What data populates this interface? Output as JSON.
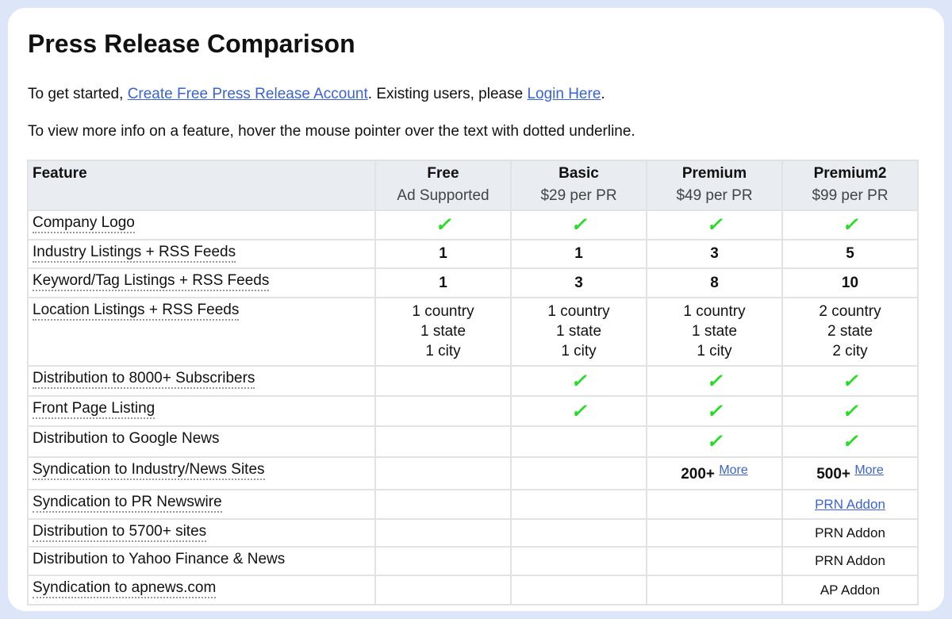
{
  "title": "Press Release Comparison",
  "intro": {
    "prefix": "To get started, ",
    "create_link": "Create Free Press Release Account",
    "middle": ". Existing users, please ",
    "login_link": "Login Here",
    "suffix": "."
  },
  "hint": "To view more info on a feature, hover the mouse pointer over the text with dotted underline.",
  "columns": [
    {
      "name": "Feature",
      "price": ""
    },
    {
      "name": "Free",
      "price": "Ad Supported"
    },
    {
      "name": "Basic",
      "price": "$29 per PR"
    },
    {
      "name": "Premium",
      "price": "$49 per PR"
    },
    {
      "name": "Premium2",
      "price": "$99 per PR"
    }
  ],
  "check_color": "#22dd22",
  "rows": [
    {
      "feature": "Company Logo",
      "dotted": true,
      "cells": [
        {
          "t": "check"
        },
        {
          "t": "check"
        },
        {
          "t": "check"
        },
        {
          "t": "check"
        }
      ]
    },
    {
      "feature": "Industry Listings + RSS Feeds",
      "dotted": true,
      "cells": [
        {
          "t": "bold",
          "v": "1"
        },
        {
          "t": "bold",
          "v": "1"
        },
        {
          "t": "bold",
          "v": "3"
        },
        {
          "t": "bold",
          "v": "5"
        }
      ]
    },
    {
      "feature": "Keyword/Tag Listings + RSS Feeds",
      "dotted": true,
      "cells": [
        {
          "t": "bold",
          "v": "1"
        },
        {
          "t": "bold",
          "v": "3"
        },
        {
          "t": "bold",
          "v": "8"
        },
        {
          "t": "bold",
          "v": "10"
        }
      ]
    },
    {
      "feature": "Location Listings + RSS Feeds",
      "dotted": true,
      "cells": [
        {
          "t": "lines",
          "v": [
            "1 country",
            "1 state",
            "1 city"
          ]
        },
        {
          "t": "lines",
          "v": [
            "1 country",
            "1 state",
            "1 city"
          ]
        },
        {
          "t": "lines",
          "v": [
            "1 country",
            "1 state",
            "1 city"
          ]
        },
        {
          "t": "lines",
          "v": [
            "2 country",
            "2 state",
            "2 city"
          ]
        }
      ]
    },
    {
      "feature": "Distribution to 8000+ Subscribers",
      "dotted": true,
      "cells": [
        {
          "t": "empty"
        },
        {
          "t": "check"
        },
        {
          "t": "check"
        },
        {
          "t": "check"
        }
      ]
    },
    {
      "feature": "Front Page Listing",
      "dotted": true,
      "cells": [
        {
          "t": "empty"
        },
        {
          "t": "check"
        },
        {
          "t": "check"
        },
        {
          "t": "check"
        }
      ]
    },
    {
      "feature": "Distribution to Google News",
      "dotted": false,
      "cells": [
        {
          "t": "empty"
        },
        {
          "t": "empty"
        },
        {
          "t": "check"
        },
        {
          "t": "check"
        }
      ]
    },
    {
      "feature": "Syndication to Industry/News Sites",
      "dotted": true,
      "cells": [
        {
          "t": "empty"
        },
        {
          "t": "empty"
        },
        {
          "t": "more",
          "v": "200+",
          "link": "More"
        },
        {
          "t": "more",
          "v": "500+",
          "link": "More"
        }
      ]
    },
    {
      "feature": "Syndication to PR Newswire",
      "dotted": true,
      "cells": [
        {
          "t": "empty"
        },
        {
          "t": "empty"
        },
        {
          "t": "empty"
        },
        {
          "t": "link",
          "v": "PRN Addon"
        }
      ]
    },
    {
      "feature": "Distribution to 5700+ sites",
      "dotted": true,
      "cells": [
        {
          "t": "empty"
        },
        {
          "t": "empty"
        },
        {
          "t": "empty"
        },
        {
          "t": "small",
          "v": "PRN Addon"
        }
      ]
    },
    {
      "feature": "Distribution to Yahoo Finance & News",
      "dotted": false,
      "cells": [
        {
          "t": "empty"
        },
        {
          "t": "empty"
        },
        {
          "t": "empty"
        },
        {
          "t": "small",
          "v": "PRN Addon"
        }
      ]
    },
    {
      "feature": "Syndication to apnews.com",
      "dotted": true,
      "cells": [
        {
          "t": "empty"
        },
        {
          "t": "empty"
        },
        {
          "t": "empty"
        },
        {
          "t": "small",
          "v": "AP Addon"
        }
      ]
    }
  ]
}
